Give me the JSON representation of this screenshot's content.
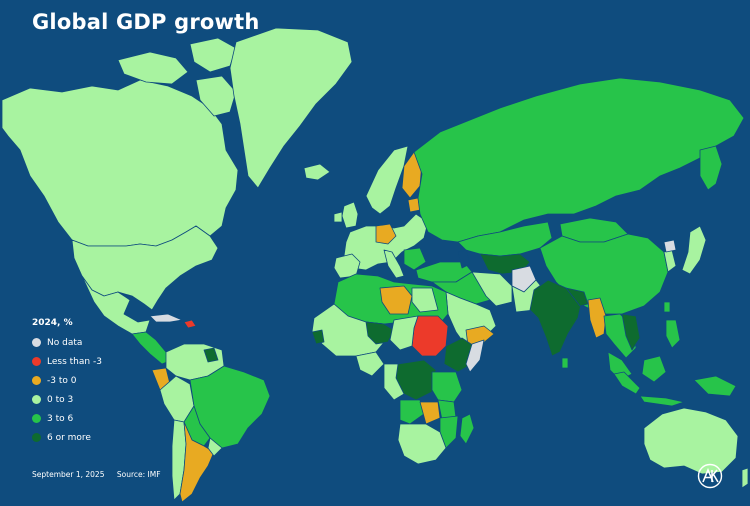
{
  "title": "Global GDP growth",
  "legend": {
    "title": "2024, %",
    "items": [
      {
        "label": "No data",
        "color": "#d8dce2"
      },
      {
        "label": "Less than -3",
        "color": "#ec3a2a"
      },
      {
        "label": "-3 to 0",
        "color": "#e8aa22"
      },
      {
        "label": "0 to 3",
        "color": "#a8f3a0"
      },
      {
        "label": " 3 to 6",
        "color": "#27c44a"
      },
      {
        "label": "6 or more",
        "color": "#0e6b2f"
      }
    ]
  },
  "footer": {
    "date": "September 1, 2025",
    "source": "Source: IMF"
  },
  "colors": {
    "ocean": "#0f4c7e",
    "border": "#0f4c7e"
  },
  "logo_icon": "agency-logo-icon"
}
